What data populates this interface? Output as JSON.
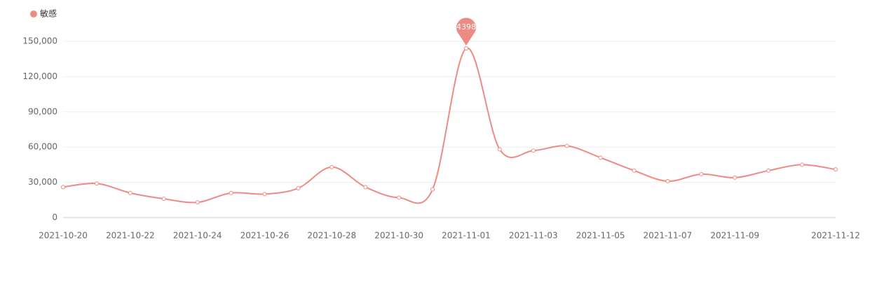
{
  "chart_data": {
    "type": "line",
    "categories": [
      "2021-10-20",
      null,
      "2021-10-22",
      null,
      "2021-10-24",
      null,
      "2021-10-26",
      null,
      "2021-10-28",
      null,
      "2021-10-30",
      null,
      "2021-11-01",
      null,
      "2021-11-03",
      null,
      "2021-11-05",
      null,
      "2021-11-07",
      null,
      "2021-11-09",
      null,
      null,
      "2021-11-12"
    ],
    "series": [
      {
        "name": "敏感",
        "color": "#ee8a84",
        "values": [
          26000,
          29000,
          21000,
          16000,
          13000,
          21000,
          20000,
          25000,
          43000,
          26000,
          17000,
          24000,
          143984,
          58000,
          57000,
          61000,
          51000,
          40000,
          31000,
          37000,
          34000,
          40000,
          45000,
          41000
        ]
      }
    ],
    "ylim": [
      0,
      150000
    ],
    "yticks": [
      0,
      {
        "value": 30000,
        "label": "30,000"
      },
      {
        "value": 60000,
        "label": "60,000"
      },
      {
        "value": 90000,
        "label": "90,000"
      },
      {
        "value": 120000,
        "label": "120,000"
      },
      {
        "value": 150000,
        "label": "150,000"
      }
    ],
    "grid": true,
    "smooth": true,
    "mark_max": true,
    "legend": "top-left"
  }
}
